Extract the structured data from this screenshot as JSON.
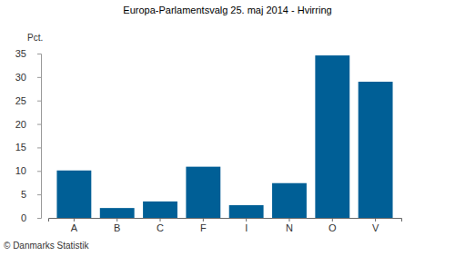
{
  "chart_data": {
    "type": "bar",
    "title": "Europa-Parlamentsvalg 25. maj 2014 - Hvirring",
    "y_label": "Pct.",
    "source": "© Danmarks Statistik",
    "categories": [
      "A",
      "B",
      "C",
      "F",
      "I",
      "N",
      "O",
      "V"
    ],
    "values": [
      10.1,
      2.1,
      3.5,
      10.9,
      2.7,
      7.4,
      34.6,
      29.0
    ],
    "color": "#005f96",
    "ylim": [
      0,
      35
    ],
    "yticks": [
      0,
      5,
      10,
      15,
      20,
      25,
      30,
      35
    ],
    "grid": false
  }
}
